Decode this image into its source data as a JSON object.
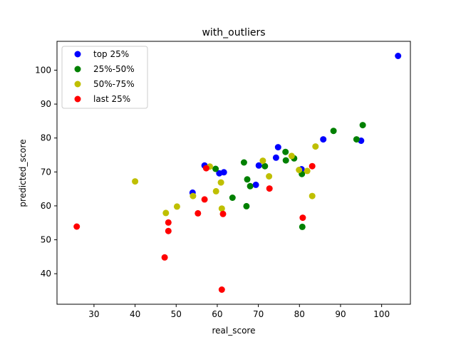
{
  "chart_data": {
    "type": "scatter",
    "title": "with_outliers",
    "xlabel": "real_score",
    "ylabel": "predicted_score",
    "xlim": [
      21,
      107
    ],
    "ylim": [
      31,
      108.5
    ],
    "xticks": [
      30,
      40,
      50,
      60,
      70,
      80,
      90,
      100
    ],
    "yticks": [
      40,
      50,
      60,
      70,
      80,
      90,
      100
    ],
    "grid": false,
    "legend_position": "top-left",
    "series": [
      {
        "name": "top 25%",
        "color": "#0000ff",
        "points": [
          [
            104,
            104.2
          ],
          [
            95,
            79.2
          ],
          [
            85.8,
            79.6
          ],
          [
            80.5,
            70.8
          ],
          [
            74.8,
            77.3
          ],
          [
            74.3,
            74.2
          ],
          [
            70.1,
            71.9
          ],
          [
            69.4,
            66.2
          ],
          [
            61.6,
            69.9
          ],
          [
            60.5,
            69.6
          ],
          [
            56.9,
            71.9
          ],
          [
            54,
            63.9
          ]
        ]
      },
      {
        "name": "25%-50%",
        "color": "#008000",
        "points": [
          [
            95.4,
            83.8
          ],
          [
            93.9,
            79.6
          ],
          [
            88.3,
            82.1
          ],
          [
            80.6,
            69.4
          ],
          [
            78.7,
            74
          ],
          [
            76.7,
            73.4
          ],
          [
            76.6,
            75.9
          ],
          [
            71.6,
            71.7
          ],
          [
            66.5,
            72.8
          ],
          [
            68,
            65.8
          ],
          [
            67.3,
            67.8
          ],
          [
            63.7,
            62.4
          ],
          [
            67.1,
            59.9
          ],
          [
            59.6,
            70.9
          ],
          [
            80.7,
            53.8
          ]
        ]
      },
      {
        "name": "50%-75%",
        "color": "#bfbf00",
        "points": [
          [
            40,
            67.2
          ],
          [
            47.5,
            57.9
          ],
          [
            50.2,
            59.8
          ],
          [
            54.1,
            62.9
          ],
          [
            58.2,
            71.6
          ],
          [
            59.7,
            64.3
          ],
          [
            60.9,
            66.9
          ],
          [
            61.1,
            59.2
          ],
          [
            71.1,
            73.3
          ],
          [
            72.6,
            68.7
          ],
          [
            78.1,
            74.7
          ],
          [
            79.9,
            70.6
          ],
          [
            81.9,
            70.3
          ],
          [
            83.9,
            77.5
          ],
          [
            83.1,
            62.9
          ]
        ]
      },
      {
        "name": "last 25%",
        "color": "#ff0000",
        "points": [
          [
            25.8,
            53.9
          ],
          [
            47.2,
            44.8
          ],
          [
            48.1,
            55.1
          ],
          [
            48.1,
            52.6
          ],
          [
            55.3,
            57.8
          ],
          [
            56.9,
            61.9
          ],
          [
            57.3,
            71.1
          ],
          [
            61.4,
            57.6
          ],
          [
            61.1,
            35.3
          ],
          [
            72.7,
            65.1
          ],
          [
            80.8,
            56.5
          ],
          [
            83.1,
            71.7
          ]
        ]
      }
    ]
  }
}
